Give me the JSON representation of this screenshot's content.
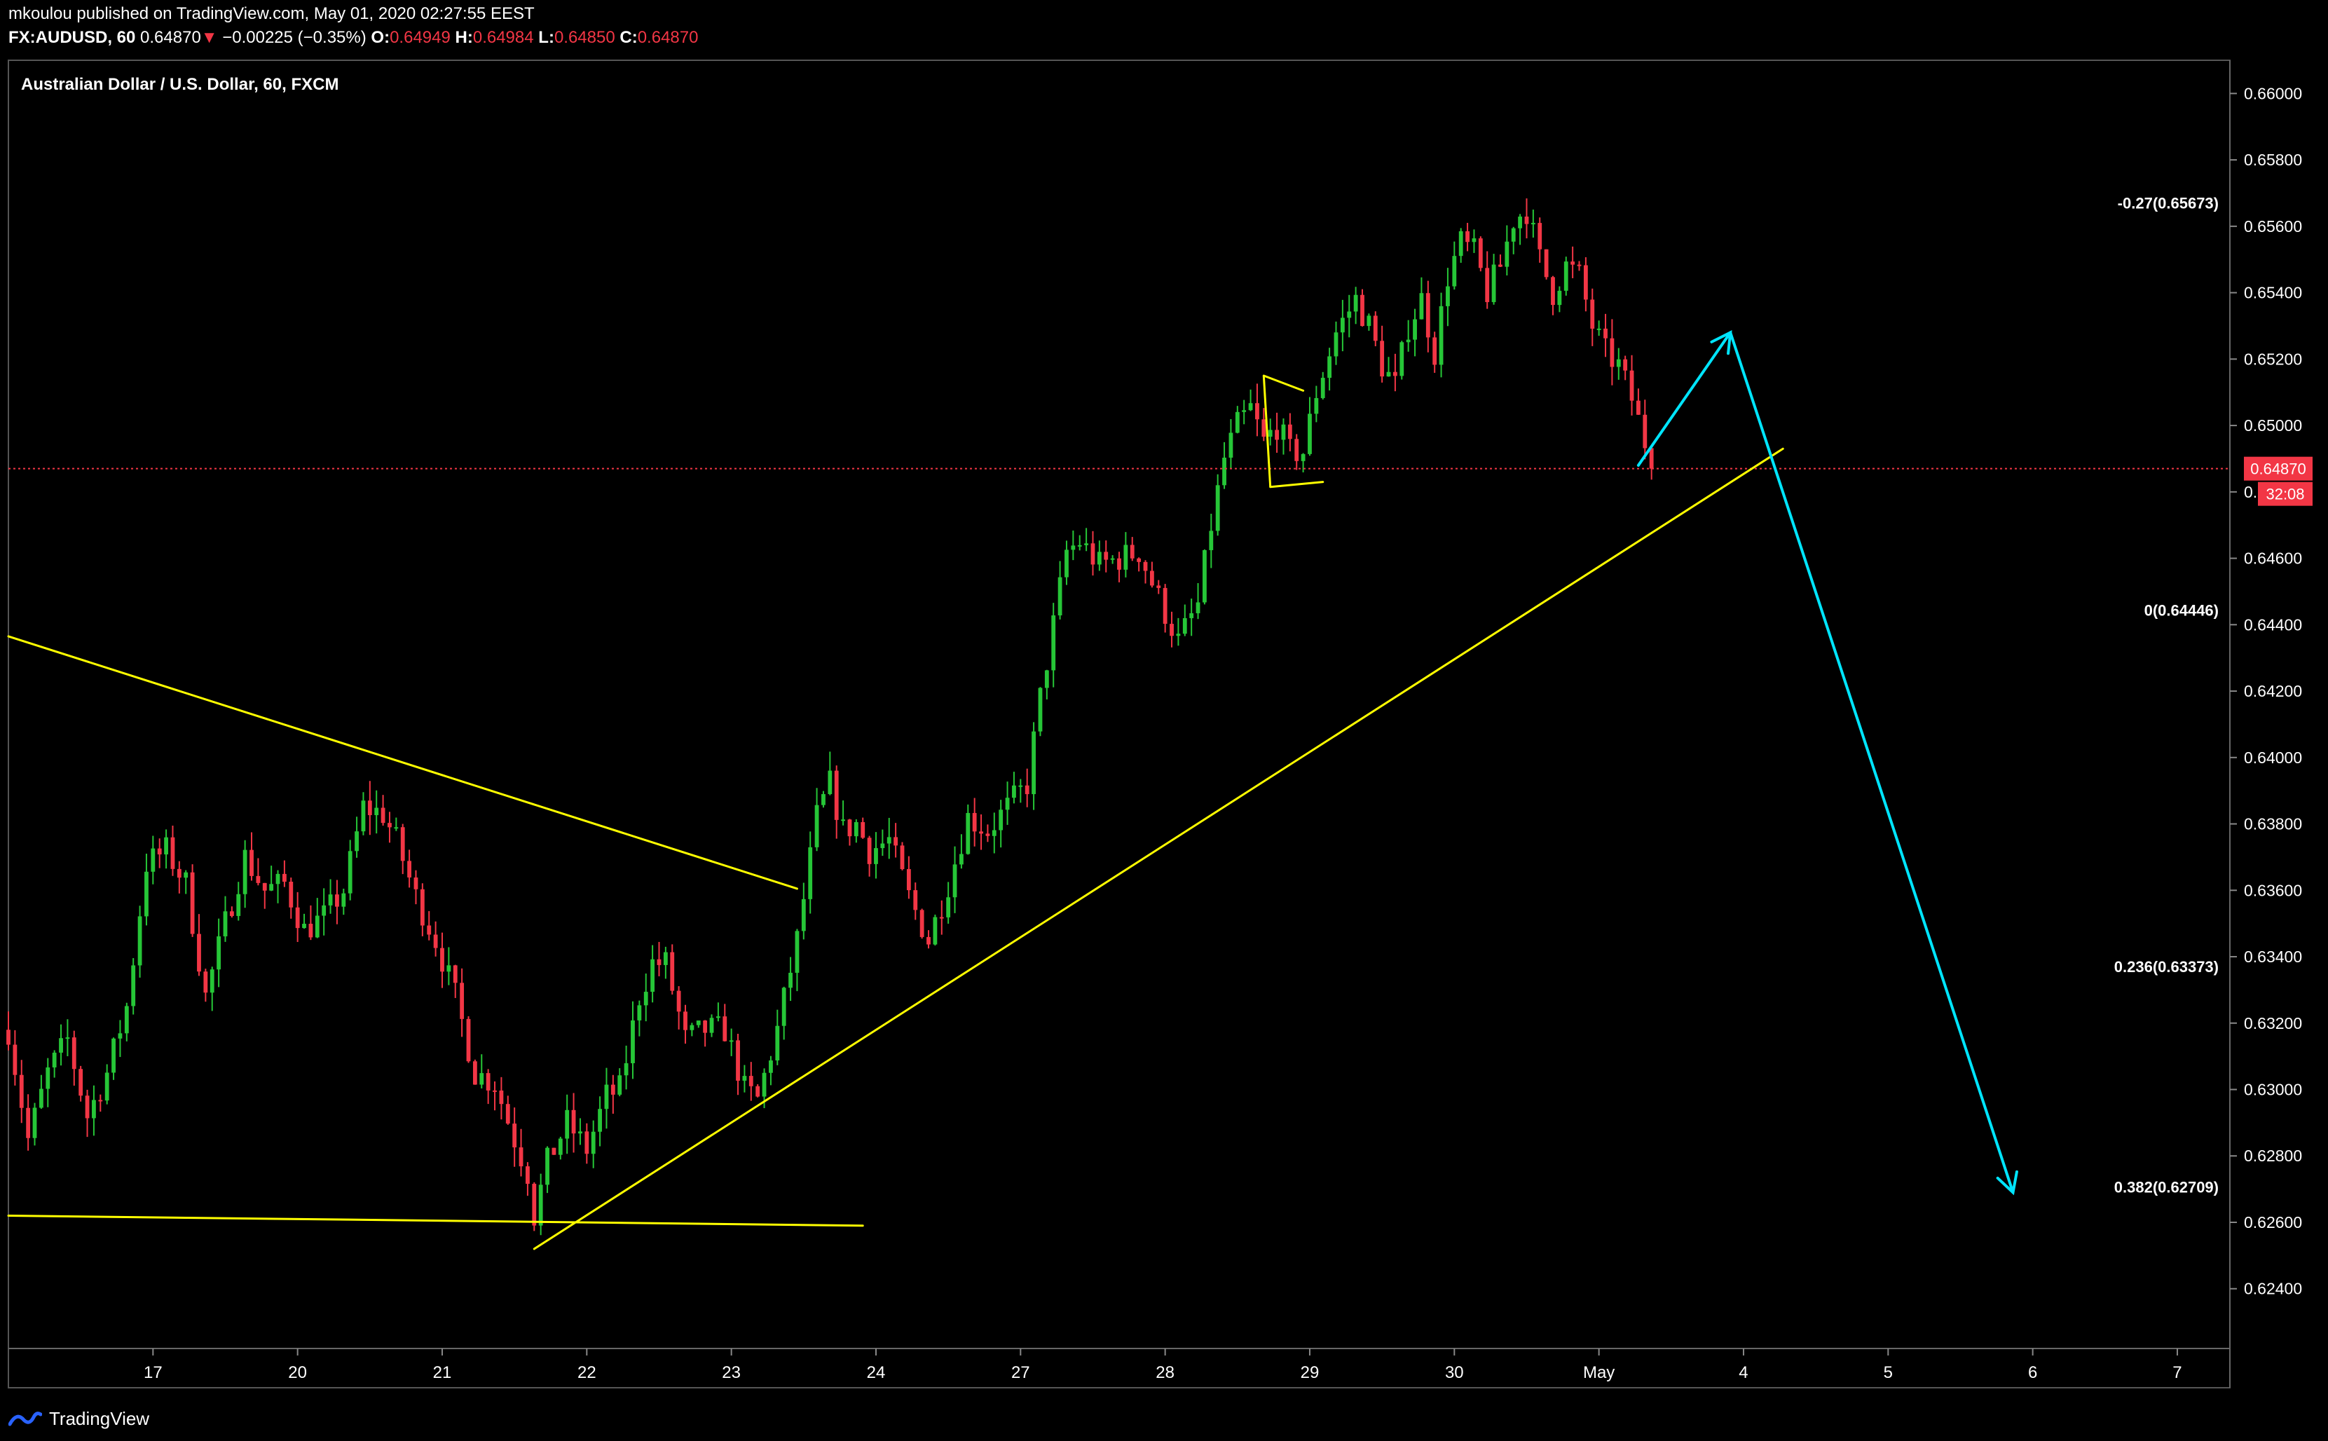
{
  "header": {
    "published_line": "mkoulou published on TradingView.com, May 01, 2020 02:27:55 EEST",
    "symbol": "FX:AUDUSD, 60",
    "last": "0.64870",
    "change_arrow": "▼",
    "change": "−0.00225 (−0.35%)",
    "o_label": "O:",
    "o_value": "0.64949",
    "h_label": "H:",
    "h_value": "0.64984",
    "l_label": "L:",
    "l_value": "0.64850",
    "c_label": "C:",
    "c_value": "0.64870"
  },
  "chart_title": "Australian Dollar / U.S. Dollar, 60, FXCM",
  "price_badge": "0.64870",
  "countdown_badge": "32:08",
  "footer": {
    "brand": "TradingView",
    "logo_icon": "tradingview-logo-icon"
  },
  "colors": {
    "up": "#26c637",
    "down": "#f23645",
    "trendline": "#ffff00",
    "projection": "#00e5ff",
    "price_line": "#f23645",
    "axis_text": "#ffffff"
  },
  "chart_data": {
    "type": "candlestick",
    "title": "Australian Dollar / U.S. Dollar, 60, FXCM",
    "ylim": [
      0.6222,
      0.661
    ],
    "y_ticks": [
      "0.66000",
      "0.65800",
      "0.65600",
      "0.65400",
      "0.65200",
      "0.65000",
      "0.64800",
      "0.64600",
      "0.64400",
      "0.64200",
      "0.64000",
      "0.63800",
      "0.63600",
      "0.63400",
      "0.63200",
      "0.63000",
      "0.62800",
      "0.62600",
      "0.62400"
    ],
    "x_ticks": [
      {
        "label": "17",
        "i": 22
      },
      {
        "label": "20",
        "i": 44
      },
      {
        "label": "21",
        "i": 66
      },
      {
        "label": "22",
        "i": 88
      },
      {
        "label": "23",
        "i": 110
      },
      {
        "label": "24",
        "i": 132
      },
      {
        "label": "27",
        "i": 154
      },
      {
        "label": "28",
        "i": 176
      },
      {
        "label": "29",
        "i": 198
      },
      {
        "label": "30",
        "i": 220
      },
      {
        "label": "May",
        "i": 242
      },
      {
        "label": "4",
        "i": 264
      },
      {
        "label": "5",
        "i": 286
      },
      {
        "label": "6",
        "i": 308
      },
      {
        "label": "7",
        "i": 330
      }
    ],
    "last_price": 0.6487,
    "fib_levels": [
      {
        "label": "-0.27(0.65673)",
        "price": 0.65673
      },
      {
        "label": "0(0.64446)",
        "price": 0.64446
      },
      {
        "label": "0.236(0.63373)",
        "price": 0.63373
      },
      {
        "label": "0.382(0.62709)",
        "price": 0.62709
      }
    ],
    "waypoints": [
      [
        0,
        0.6318
      ],
      [
        3,
        0.6285
      ],
      [
        6,
        0.6305
      ],
      [
        9,
        0.6315
      ],
      [
        12,
        0.6292
      ],
      [
        15,
        0.6305
      ],
      [
        18,
        0.6325
      ],
      [
        21,
        0.6368
      ],
      [
        24,
        0.6372
      ],
      [
        27,
        0.6362
      ],
      [
        30,
        0.6328
      ],
      [
        33,
        0.635
      ],
      [
        36,
        0.637
      ],
      [
        39,
        0.636
      ],
      [
        42,
        0.6362
      ],
      [
        45,
        0.6348
      ],
      [
        48,
        0.6352
      ],
      [
        51,
        0.636
      ],
      [
        54,
        0.6385
      ],
      [
        57,
        0.6383
      ],
      [
        59,
        0.6375
      ],
      [
        62,
        0.6358
      ],
      [
        65,
        0.6345
      ],
      [
        68,
        0.6328
      ],
      [
        71,
        0.6305
      ],
      [
        74,
        0.6302
      ],
      [
        77,
        0.6285
      ],
      [
        79,
        0.6275
      ],
      [
        80,
        0.6262
      ],
      [
        82,
        0.6278
      ],
      [
        85,
        0.629
      ],
      [
        88,
        0.6282
      ],
      [
        91,
        0.6298
      ],
      [
        93,
        0.63
      ],
      [
        96,
        0.6328
      ],
      [
        98,
        0.6338
      ],
      [
        100,
        0.6338
      ],
      [
        103,
        0.6315
      ],
      [
        106,
        0.6318
      ],
      [
        109,
        0.6318
      ],
      [
        112,
        0.63
      ],
      [
        114,
        0.6297
      ],
      [
        117,
        0.6318
      ],
      [
        120,
        0.6345
      ],
      [
        123,
        0.6382
      ],
      [
        125,
        0.6392
      ],
      [
        127,
        0.6378
      ],
      [
        129,
        0.638
      ],
      [
        131,
        0.6372
      ],
      [
        134,
        0.6375
      ],
      [
        137,
        0.6358
      ],
      [
        140,
        0.6345
      ],
      [
        143,
        0.6362
      ],
      [
        146,
        0.6382
      ],
      [
        149,
        0.6378
      ],
      [
        152,
        0.6385
      ],
      [
        155,
        0.6392
      ],
      [
        157,
        0.6418
      ],
      [
        159,
        0.644
      ],
      [
        161,
        0.6462
      ],
      [
        163,
        0.6465
      ],
      [
        166,
        0.6458
      ],
      [
        169,
        0.646
      ],
      [
        172,
        0.6462
      ],
      [
        175,
        0.6448
      ],
      [
        178,
        0.6435
      ],
      [
        181,
        0.6446
      ],
      [
        183,
        0.647
      ],
      [
        185,
        0.649
      ],
      [
        187,
        0.65
      ],
      [
        189,
        0.6505
      ],
      [
        191,
        0.6495
      ],
      [
        193,
        0.65
      ],
      [
        195,
        0.6492
      ],
      [
        197,
        0.6492
      ],
      [
        199,
        0.651
      ],
      [
        202,
        0.6528
      ],
      [
        205,
        0.6538
      ],
      [
        207,
        0.653
      ],
      [
        209,
        0.6518
      ],
      [
        211,
        0.6512
      ],
      [
        213,
        0.653
      ],
      [
        215,
        0.6538
      ],
      [
        217,
        0.6522
      ],
      [
        219,
        0.6545
      ],
      [
        221,
        0.6555
      ],
      [
        223,
        0.6552
      ],
      [
        225,
        0.654
      ],
      [
        227,
        0.6548
      ],
      [
        229,
        0.6562
      ],
      [
        231,
        0.6565
      ],
      [
        233,
        0.655
      ],
      [
        235,
        0.654
      ],
      [
        237,
        0.6548
      ],
      [
        239,
        0.6545
      ],
      [
        241,
        0.653
      ],
      [
        243,
        0.6522
      ],
      [
        245,
        0.6518
      ],
      [
        247,
        0.6508
      ],
      [
        249,
        0.6495
      ],
      [
        250,
        0.6487
      ]
    ],
    "drawings": {
      "descending_trendline": [
        [
          0,
          0.64365
        ],
        [
          120,
          0.63605
        ]
      ],
      "horizontal_support": [
        [
          0,
          0.6262
        ],
        [
          130,
          0.6259
        ]
      ],
      "ascending_trendline": [
        [
          80,
          0.6252
        ],
        [
          270,
          0.6493
        ]
      ],
      "wedge_upper": [
        [
          191,
          0.6515
        ],
        [
          197,
          0.65105
        ]
      ],
      "wedge_lower": [
        [
          192,
          0.64815
        ],
        [
          200,
          0.6483
        ]
      ],
      "projection_up": [
        [
          248,
          0.6488
        ],
        [
          262,
          0.6528
        ]
      ],
      "projection_down": [
        [
          262,
          0.6528
        ],
        [
          305,
          0.6269
        ]
      ]
    }
  }
}
